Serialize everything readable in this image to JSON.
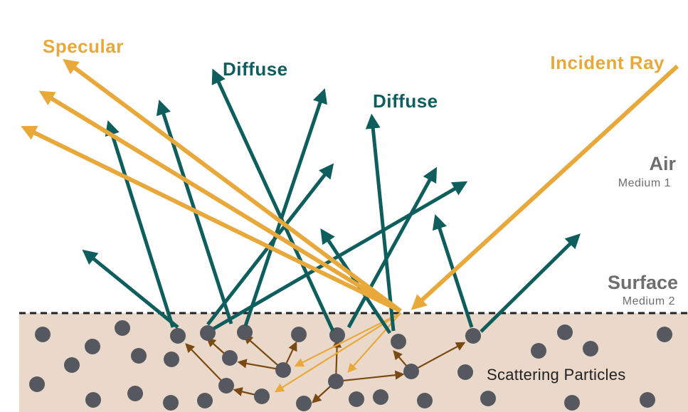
{
  "labels": {
    "specular": "Specular",
    "diffuse_1": "Diffuse",
    "diffuse_2": "Diffuse",
    "incident_ray": "Incident Ray",
    "air": "Air",
    "medium_1": "Medium 1",
    "surface": "Surface",
    "medium_2": "Medium 2",
    "scattering_particles": "Scattering Particles"
  },
  "colors": {
    "specular": "#E8A83A",
    "diffuse": "#0F5E5E",
    "internal_scatter": "#7A4A12",
    "medium_2_fill": "#EAD9CB",
    "particle": "#55585E",
    "medium_label": "#6E6E6E",
    "boundary": "#222222"
  }
}
